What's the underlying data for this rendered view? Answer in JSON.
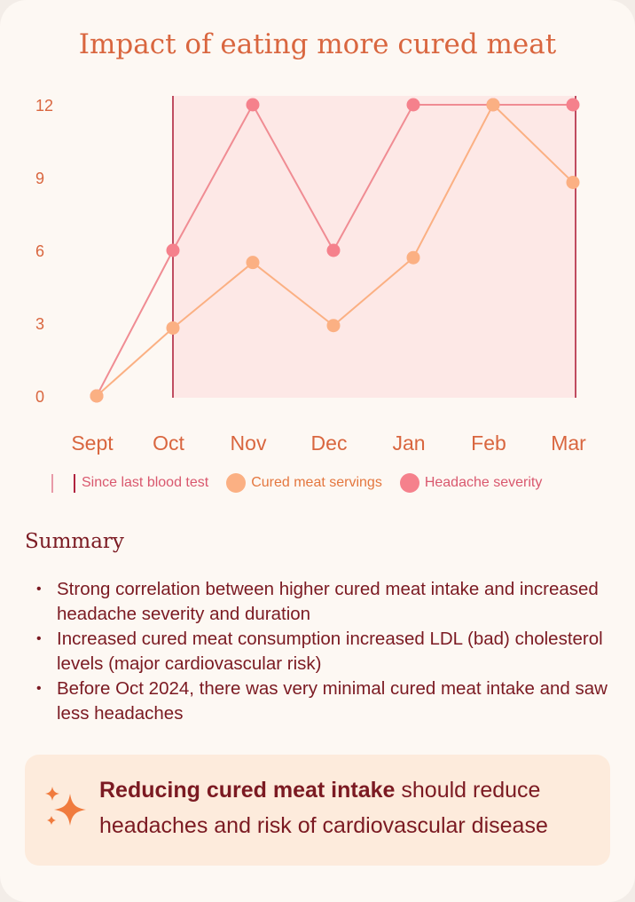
{
  "title": "Impact of eating more cured meat",
  "chart_data": {
    "type": "line",
    "categories": [
      "Sept",
      "Oct",
      "Nov",
      "Dec",
      "Jan",
      "Feb",
      "Mar"
    ],
    "y_ticks": [
      0,
      3,
      6,
      9,
      12
    ],
    "ylim": [
      0,
      12
    ],
    "series": [
      {
        "name": "Cured meat servings",
        "values": [
          0,
          2.8,
          5.5,
          2.9,
          5.7,
          12,
          8.8
        ],
        "color": "#fbb083",
        "line_color": "#fbb083"
      },
      {
        "name": "Headache severity",
        "values": [
          0,
          6,
          12,
          6,
          12,
          12,
          12
        ],
        "color": "#f5818c",
        "line_color": "#f08c93"
      }
    ],
    "highlight_range": {
      "label": "Since last blood test",
      "from": "Oct",
      "to": "Mar",
      "line_color": "#b0243f",
      "fill_color": "#fde8e6"
    }
  },
  "legend": {
    "range_label": "Since last blood test",
    "series_1": "Cured meat servings",
    "series_2": "Headache severity"
  },
  "summary": {
    "heading": "Summary",
    "bullet_glyph": "•",
    "items": [
      "Strong correlation between higher cured meat intake and increased headache severity and duration",
      "Increased cured meat consumption increased LDL (bad) cholesterol levels (major cardiovascular risk)",
      "Before Oct 2024, there was very minimal cured meat intake and saw less headaches"
    ]
  },
  "callout": {
    "bold": "Reducing cured meat intake",
    "rest": " should reduce headaches and risk of cardiovascular disease",
    "icon": "sparkles-icon"
  },
  "colors": {
    "title": "#d9663f",
    "text_dark": "#7b1a22",
    "callout_bg": "#fdebdc",
    "sparkle": "#f07b3e"
  }
}
